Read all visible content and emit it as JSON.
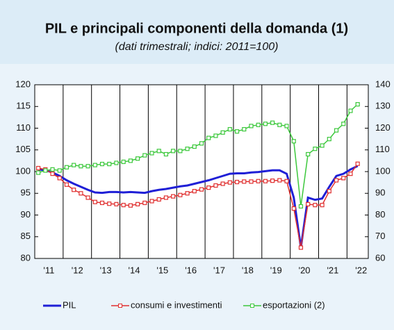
{
  "chart_data": {
    "type": "line",
    "title": "PIL e principali componenti della domanda (1)",
    "subtitle": "(dati trimestrali; indici: 2011=100)",
    "categories": [
      "'11",
      null,
      null,
      null,
      "'12",
      null,
      null,
      null,
      "'13",
      null,
      null,
      null,
      "'14",
      null,
      null,
      null,
      "'15",
      null,
      null,
      null,
      "'16",
      null,
      null,
      null,
      "'17",
      null,
      null,
      null,
      "'18",
      null,
      null,
      null,
      "'19",
      null,
      null,
      null,
      "'20",
      null,
      null,
      null,
      "'21",
      null,
      null,
      null,
      "'22",
      null
    ],
    "series": [
      {
        "name": "PIL",
        "color": "#1f1fd6",
        "values": [
          100.5,
          100.3,
          99.8,
          99.0,
          98.0,
          97.2,
          96.5,
          95.8,
          95.2,
          95.1,
          95.3,
          95.3,
          95.2,
          95.3,
          95.2,
          95.1,
          95.5,
          95.8,
          96.0,
          96.3,
          96.6,
          96.8,
          97.2,
          97.6,
          98.0,
          98.5,
          99.0,
          99.5,
          99.6,
          99.6,
          99.8,
          99.9,
          100.1,
          100.3,
          100.3,
          99.5,
          94.0,
          82.5,
          94.0,
          93.5,
          93.8,
          96.5,
          99.0,
          99.5,
          100.5,
          101.3
        ]
      },
      {
        "name": "consumi e investimenti",
        "color": "#e03030",
        "values": [
          100.8,
          100.5,
          99.5,
          98.5,
          97.0,
          95.8,
          95.0,
          94.0,
          93.0,
          92.8,
          92.6,
          92.5,
          92.3,
          92.2,
          92.5,
          92.8,
          93.2,
          93.6,
          94.0,
          94.3,
          94.6,
          95.0,
          95.5,
          95.9,
          96.3,
          96.8,
          97.2,
          97.5,
          97.6,
          97.7,
          97.7,
          97.8,
          97.8,
          97.9,
          98.0,
          97.8,
          91.5,
          82.5,
          92.5,
          92.3,
          92.3,
          95.5,
          98.0,
          98.5,
          99.5,
          101.8
        ]
      },
      {
        "name": "esportazioni (2)",
        "color": "#3cc83c",
        "axis": "y2",
        "values": [
          99.5,
          100.5,
          101,
          100.5,
          102,
          103,
          102.5,
          102.5,
          103,
          103.5,
          103.5,
          104,
          104.5,
          105,
          106,
          107.5,
          108.5,
          109.5,
          108,
          109.5,
          109.5,
          110.5,
          111.5,
          113,
          115.5,
          116.5,
          118,
          119.5,
          118.5,
          119.5,
          121,
          121.5,
          122,
          122.5,
          121.5,
          121,
          114,
          84,
          108,
          110.5,
          112,
          115,
          119,
          122,
          128,
          131
        ]
      }
    ],
    "ylim": [
      80,
      120
    ],
    "yticks": [
      80,
      85,
      90,
      95,
      100,
      105,
      110,
      115,
      120
    ],
    "y2lim": [
      60,
      140
    ],
    "y2ticks": [
      60,
      70,
      80,
      90,
      100,
      110,
      120,
      130,
      140
    ],
    "legend": "bottom"
  }
}
